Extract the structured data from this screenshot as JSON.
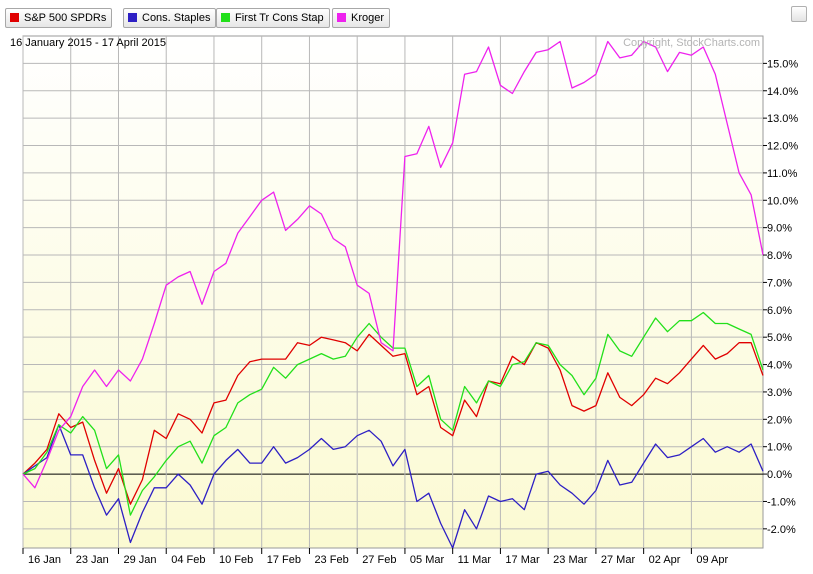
{
  "legend": [
    {
      "label": "S&P 500 SPDRs",
      "color": "#e00000"
    },
    {
      "label": "Cons. Staples",
      "color": "#2d1fc4"
    },
    {
      "label": "First Tr Cons Stap",
      "color": "#22e01a"
    },
    {
      "label": "Kroger",
      "color": "#ee22ee"
    }
  ],
  "header": {
    "date_range": "16 January 2015 - 17 April 2015",
    "copyright": "Copyright, StockCharts.com"
  },
  "colors": {
    "plot_gradient_top": "#ffffff",
    "plot_gradient_bottom": "#fbfad2",
    "grid": "#b8b8b8",
    "zero_line": "#000000"
  },
  "chart_data": {
    "type": "line",
    "ylim": [
      -2.7,
      16.0
    ],
    "y_ticks": [
      "15.0%",
      "14.0%",
      "13.0%",
      "12.0%",
      "11.0%",
      "10.0%",
      "9.0%",
      "8.0%",
      "7.0%",
      "6.0%",
      "5.0%",
      "4.0%",
      "3.0%",
      "2.0%",
      "1.0%",
      "0.0%",
      "-1.0%",
      "-2.0%"
    ],
    "y_tick_values": [
      15,
      14,
      13,
      12,
      11,
      10,
      9,
      8,
      7,
      6,
      5,
      4,
      3,
      2,
      1,
      0,
      -1,
      -2
    ],
    "x_labels": [
      "16 Jan",
      "23 Jan",
      "29 Jan",
      "04 Feb",
      "10 Feb",
      "17 Feb",
      "23 Feb",
      "27 Feb",
      "05 Mar",
      "11 Mar",
      "17 Mar",
      "23 Mar",
      "27 Mar",
      "02 Apr",
      "09 Apr"
    ],
    "x_label_index": [
      0,
      4,
      8,
      12,
      16,
      20,
      24,
      28,
      32,
      36,
      40,
      44,
      48,
      52,
      56
    ],
    "n_points": 63,
    "series": [
      {
        "name": "S&P 500 SPDRs",
        "color": "#e00000",
        "values": [
          0,
          0.4,
          0.9,
          2.2,
          1.7,
          1.9,
          0.5,
          -0.7,
          0.2,
          -1.1,
          -0.2,
          1.6,
          1.3,
          2.2,
          2.0,
          1.5,
          2.6,
          2.7,
          3.6,
          4.1,
          4.2,
          4.2,
          4.2,
          4.8,
          4.7,
          5.0,
          4.9,
          4.8,
          4.5,
          5.1,
          4.7,
          4.3,
          4.4,
          2.9,
          3.2,
          1.7,
          1.4,
          2.7,
          2.1,
          3.4,
          3.3,
          4.3,
          4.0,
          4.8,
          4.6,
          3.8,
          2.5,
          2.3,
          2.5,
          3.7,
          2.8,
          2.5,
          2.9,
          3.5,
          3.3,
          3.7,
          4.2,
          4.7,
          4.2,
          4.4,
          4.8,
          4.8,
          3.6
        ]
      },
      {
        "name": "Cons. Staples",
        "color": "#2d1fc4",
        "values": [
          0,
          0.3,
          0.6,
          1.8,
          0.7,
          0.7,
          -0.5,
          -1.5,
          -0.9,
          -2.5,
          -1.4,
          -0.5,
          -0.5,
          0.0,
          -0.4,
          -1.1,
          0.0,
          0.5,
          0.9,
          0.4,
          0.4,
          1.0,
          0.4,
          0.6,
          0.9,
          1.3,
          0.9,
          1.0,
          1.4,
          1.6,
          1.2,
          0.3,
          0.9,
          -1.0,
          -0.7,
          -1.8,
          -2.7,
          -1.3,
          -2.0,
          -0.8,
          -1.0,
          -0.9,
          -1.3,
          0.0,
          0.1,
          -0.4,
          -0.7,
          -1.1,
          -0.6,
          0.5,
          -0.4,
          -0.3,
          0.4,
          1.1,
          0.6,
          0.7,
          1.0,
          1.3,
          0.8,
          1.0,
          0.8,
          1.1,
          0.1
        ]
      },
      {
        "name": "First Tr Cons Stap",
        "color": "#22e01a",
        "values": [
          0,
          0.2,
          0.8,
          1.8,
          1.5,
          2.1,
          1.6,
          0.2,
          0.7,
          -1.5,
          -0.6,
          -0.1,
          0.5,
          1.0,
          1.2,
          0.4,
          1.4,
          1.7,
          2.6,
          2.9,
          3.1,
          3.9,
          3.5,
          4.0,
          4.2,
          4.4,
          4.2,
          4.3,
          5.0,
          5.5,
          5.0,
          4.6,
          4.6,
          3.2,
          3.6,
          2.0,
          1.6,
          3.2,
          2.6,
          3.4,
          3.2,
          4.0,
          4.1,
          4.8,
          4.7,
          4.0,
          3.6,
          2.9,
          3.5,
          5.1,
          4.5,
          4.3,
          5.0,
          5.7,
          5.2,
          5.6,
          5.6,
          5.9,
          5.5,
          5.5,
          5.3,
          5.1,
          3.8
        ]
      },
      {
        "name": "Kroger",
        "color": "#ee22ee",
        "values": [
          0,
          -0.5,
          0.5,
          1.6,
          2.1,
          3.2,
          3.8,
          3.2,
          3.8,
          3.4,
          4.2,
          5.5,
          6.9,
          7.2,
          7.4,
          6.2,
          7.4,
          7.7,
          8.8,
          9.4,
          10.0,
          10.3,
          8.9,
          9.3,
          9.8,
          9.5,
          8.6,
          8.3,
          6.9,
          6.6,
          4.8,
          4.5,
          11.6,
          11.7,
          12.7,
          11.2,
          12.1,
          14.6,
          14.7,
          15.6,
          14.2,
          13.9,
          14.7,
          15.4,
          15.5,
          15.8,
          14.1,
          14.3,
          14.6,
          15.8,
          15.2,
          15.3,
          15.8,
          15.6,
          14.7,
          15.4,
          15.3,
          15.6,
          14.6,
          12.8,
          11.0,
          10.2,
          8.0
        ]
      }
    ]
  }
}
